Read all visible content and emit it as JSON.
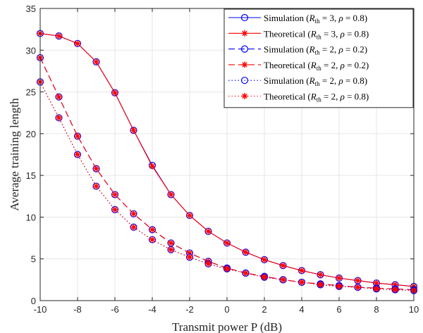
{
  "chart_data": {
    "type": "line",
    "xlabel": "Transmit power P (dB)",
    "ylabel": "Average training length",
    "xlim": [
      -10,
      10
    ],
    "ylim": [
      0,
      35
    ],
    "xticks": [
      -10,
      -8,
      -6,
      -4,
      -2,
      0,
      2,
      4,
      6,
      8,
      10
    ],
    "yticks": [
      0,
      5,
      10,
      15,
      20,
      25,
      30,
      35
    ],
    "grid": true,
    "legend_position": "top-right",
    "x": [
      -10,
      -9,
      -8,
      -7,
      -6,
      -5,
      -4,
      -3,
      -2,
      -1,
      0,
      1,
      2,
      3,
      4,
      5,
      6,
      7,
      8,
      9,
      10
    ],
    "series": [
      {
        "name": "Simulation  (R_th = 3, ρ = 0.8)",
        "color": "#0000ff",
        "line": "solid",
        "marker": "circle",
        "values": [
          32.0,
          31.7,
          30.8,
          28.6,
          24.9,
          20.4,
          16.2,
          12.7,
          10.2,
          8.3,
          6.9,
          5.8,
          4.9,
          4.2,
          3.6,
          3.1,
          2.7,
          2.4,
          2.1,
          1.9,
          1.7
        ]
      },
      {
        "name": "Theoretical  (R_th = 3, ρ = 0.8)",
        "color": "#ff0000",
        "line": "solid",
        "marker": "asterisk",
        "values": [
          32.0,
          31.7,
          30.8,
          28.6,
          24.9,
          20.4,
          16.1,
          12.7,
          10.2,
          8.3,
          6.9,
          5.8,
          4.9,
          4.2,
          3.6,
          3.1,
          2.7,
          2.4,
          2.1,
          1.9,
          1.7
        ]
      },
      {
        "name": "Simulation  (R_th = 2, ρ = 0.2)",
        "color": "#0000ff",
        "line": "dashed",
        "marker": "circle",
        "values": [
          29.1,
          24.4,
          19.7,
          15.8,
          12.7,
          10.4,
          8.5,
          6.9,
          5.7,
          4.7,
          3.9,
          3.3,
          2.9,
          2.5,
          2.2,
          2.0,
          1.8,
          1.6,
          1.5,
          1.4,
          1.3
        ]
      },
      {
        "name": "Theoretical  (R_th = 2, ρ = 0.2)",
        "color": "#ff0000",
        "line": "dashed",
        "marker": "asterisk",
        "values": [
          29.1,
          24.4,
          19.7,
          15.8,
          12.7,
          10.4,
          8.5,
          6.9,
          5.7,
          4.7,
          3.9,
          3.3,
          2.9,
          2.5,
          2.2,
          2.0,
          1.8,
          1.6,
          1.5,
          1.4,
          1.3
        ]
      },
      {
        "name": "Simulation  (R_th = 2, ρ = 0.8)",
        "color": "#0000ff",
        "line": "dotted",
        "marker": "circle",
        "values": [
          26.2,
          21.9,
          17.5,
          13.7,
          10.9,
          8.8,
          7.3,
          6.1,
          5.2,
          4.4,
          3.8,
          3.3,
          2.8,
          2.5,
          2.2,
          1.9,
          1.7,
          1.6,
          1.4,
          1.3,
          1.2
        ]
      },
      {
        "name": "Theoretical  (R_th = 2, ρ = 0.8)",
        "color": "#ff0000",
        "line": "dotted",
        "marker": "asterisk",
        "values": [
          26.2,
          21.9,
          17.5,
          13.7,
          10.9,
          8.8,
          7.3,
          6.1,
          5.2,
          4.4,
          3.8,
          3.3,
          2.8,
          2.5,
          2.2,
          1.9,
          1.7,
          1.6,
          1.4,
          1.3,
          1.2
        ]
      }
    ]
  }
}
